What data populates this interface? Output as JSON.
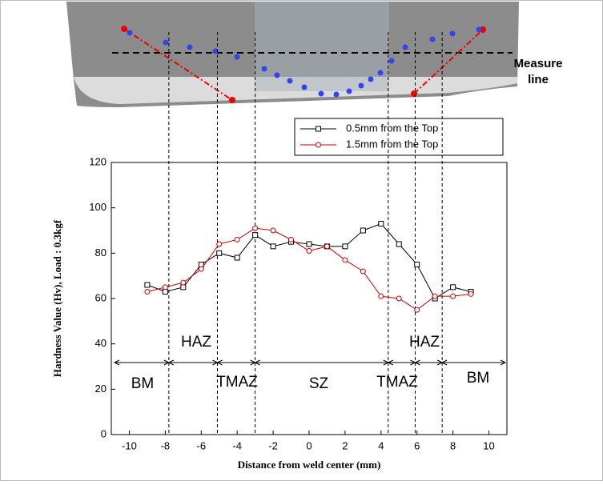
{
  "chart_data": {
    "type": "line",
    "x_label": "Distance from weld center (mm)",
    "y_label": "Hardness Value (Hv),  Load : 0.3kgf",
    "x": [
      -9,
      -8,
      -7,
      -6,
      -5,
      -4,
      -3,
      -2,
      -1,
      0,
      1,
      2,
      3,
      4,
      5,
      6,
      7,
      8,
      9
    ],
    "series": [
      {
        "name": "0.5mm from the Top",
        "color": "#000000",
        "marker": "square",
        "values": [
          66,
          63,
          65,
          75,
          80,
          78,
          88,
          83,
          85,
          84,
          83,
          83,
          90,
          93,
          84,
          75,
          60,
          65,
          63
        ]
      },
      {
        "name": "1.5mm from the Top",
        "color": "#cc0000",
        "marker": "circle",
        "values": [
          63,
          65,
          67,
          73,
          84,
          86,
          91,
          90,
          86,
          81,
          83,
          77,
          72,
          61,
          60,
          55,
          61,
          61,
          62
        ]
      }
    ],
    "xlim": [
      -11,
      11
    ],
    "ylim": [
      0,
      120
    ],
    "xticks": [
      -10,
      -8,
      -6,
      -4,
      -2,
      0,
      2,
      4,
      6,
      8,
      10
    ],
    "yticks": [
      0,
      20,
      40,
      60,
      80,
      100,
      120
    ],
    "zone_boundaries": [
      -7.8,
      -5.1,
      -3,
      4.4,
      5.9,
      7.4
    ],
    "zones": [
      "BM",
      "HAZ",
      "TMAZ",
      "SZ",
      "TMAZ",
      "HAZ",
      "BM"
    ],
    "photo_label": [
      "Measure",
      "line"
    ]
  }
}
